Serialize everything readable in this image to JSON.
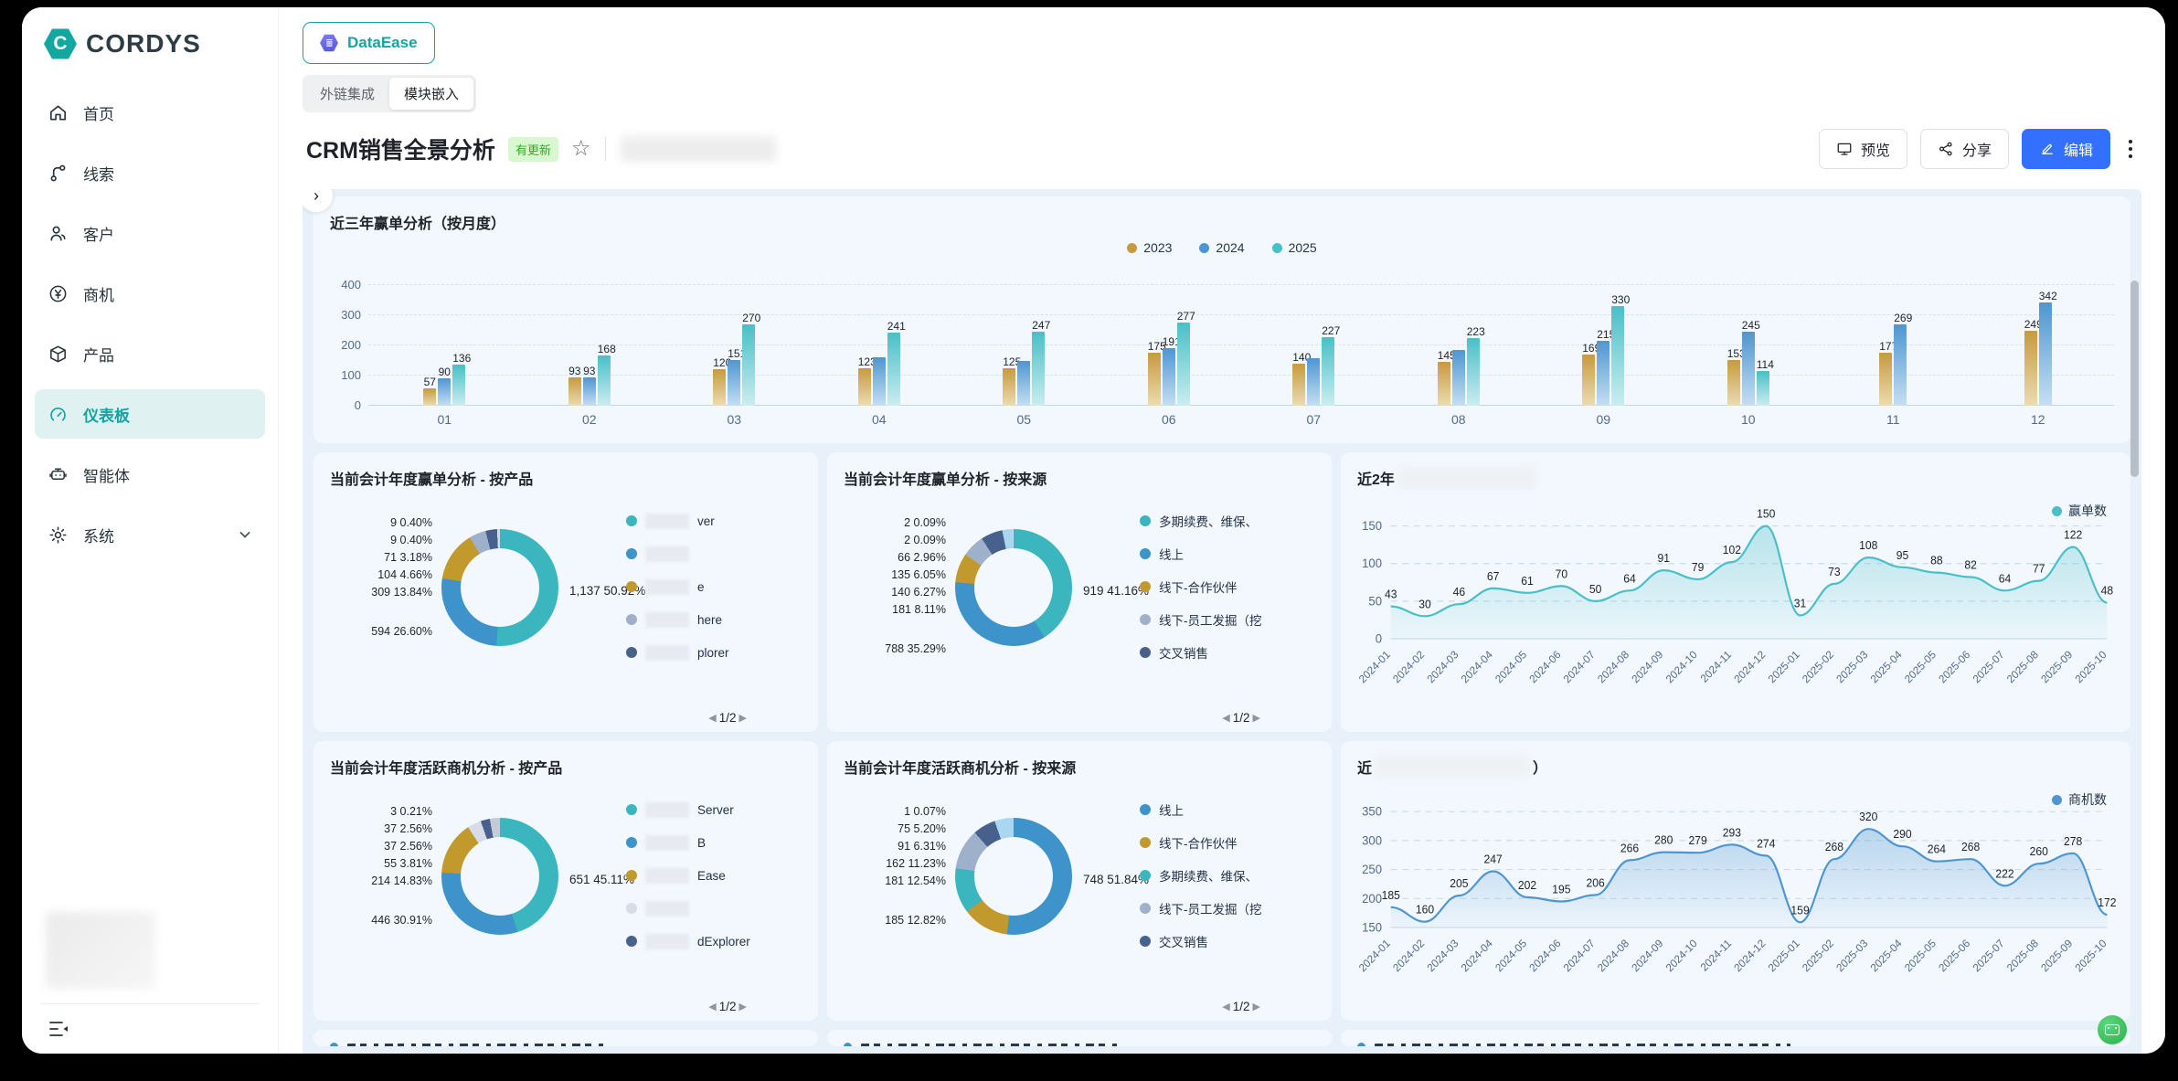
{
  "sidebar": {
    "logo": {
      "text": "CORDYS"
    },
    "items": [
      {
        "label": "首页",
        "icon": "home-icon",
        "active": false
      },
      {
        "label": "线索",
        "icon": "leads-icon",
        "active": false
      },
      {
        "label": "客户",
        "icon": "customers-icon",
        "active": false
      },
      {
        "label": "商机",
        "icon": "opportunity-icon",
        "active": false
      },
      {
        "label": "产品",
        "icon": "product-icon",
        "active": false
      },
      {
        "label": "仪表板",
        "icon": "dashboard-icon",
        "active": true
      },
      {
        "label": "智能体",
        "icon": "agent-icon",
        "active": false
      },
      {
        "label": "系统",
        "icon": "system-icon",
        "active": false,
        "chevron": true
      }
    ]
  },
  "header": {
    "app_button_label": "DataEase",
    "tabs": [
      {
        "label": "外链集成",
        "active": false
      },
      {
        "label": "模块嵌入",
        "active": true
      }
    ],
    "title": "CRM销售全景分析",
    "badge": "有更新",
    "actions": {
      "preview": "预览",
      "share": "分享",
      "edit": "编辑"
    }
  },
  "chart_data": [
    {
      "type": "bar",
      "title": "近三年赢单分析（按月度）",
      "categories": [
        "01",
        "02",
        "03",
        "04",
        "05",
        "06",
        "07",
        "08",
        "09",
        "10",
        "11",
        "12"
      ],
      "ylim": [
        0,
        400
      ],
      "yticks": [
        0,
        100,
        200,
        300,
        400
      ],
      "legend_position": "top-center",
      "series": [
        {
          "name": "2023",
          "color": "#C79A3E",
          "color_to": "#EBDCB2",
          "values": [
            57,
            93,
            120,
            123,
            125,
            175,
            140,
            145,
            169,
            153,
            177,
            249
          ],
          "labels": [
            "57",
            "93",
            "120",
            "123",
            "125",
            "175",
            "140",
            "145",
            "169",
            "153",
            "177",
            "249"
          ]
        },
        {
          "name": "2024",
          "color": "#4E96D1",
          "color_to": "#C6DFF2",
          "values": [
            90,
            93,
            151,
            160,
            148,
            191,
            158,
            185,
            215,
            245,
            269,
            342
          ],
          "labels": [
            "90",
            "93",
            "151",
            "",
            "",
            "191",
            "",
            "",
            "215",
            "245",
            "269",
            "342"
          ]
        },
        {
          "name": "2025",
          "color": "#49BFC7",
          "color_to": "#CBEDF0",
          "values": [
            136,
            168,
            270,
            241,
            247,
            277,
            227,
            223,
            330,
            114,
            null,
            null
          ],
          "labels": [
            "136",
            "168",
            "270",
            "241",
            "247",
            "277",
            "227",
            "223",
            "330",
            "114",
            "",
            ""
          ]
        }
      ]
    },
    {
      "type": "pie",
      "title": "当前会计年度赢单分析 - 按产品",
      "slices": [
        {
          "value": 1137,
          "pct": 50.92,
          "color": "#3BB6BE"
        },
        {
          "value": 594,
          "pct": 26.6,
          "color": "#3E93CB"
        },
        {
          "value": 309,
          "pct": 13.84,
          "color": "#C2992D"
        },
        {
          "value": 104,
          "pct": 4.66,
          "color": "#9FB0CA"
        },
        {
          "value": 71,
          "pct": 3.18,
          "color": "#47618C"
        },
        {
          "value": 9,
          "pct": 0.4,
          "color": "#D7DCE8"
        },
        {
          "value": 9,
          "pct": 0.4,
          "color": "#BFE0F0"
        }
      ],
      "left_labels": [
        "9 0.40%",
        "9 0.40%",
        "71 3.18%",
        "104 4.66%",
        "309 13.84%",
        "594 26.60%"
      ],
      "main_label": "1,137 50.92%",
      "legend": [
        {
          "color": "#3BB6BE",
          "masked": true,
          "text": "ver"
        },
        {
          "color": "#3E93CB",
          "masked": true,
          "text": ""
        },
        {
          "color": "#C2992D",
          "masked": true,
          "text": "e"
        },
        {
          "color": "#9FB0CA",
          "masked": true,
          "text": "here"
        },
        {
          "color": "#47618C",
          "masked": true,
          "text": "plorer"
        }
      ],
      "pagination": "1/2"
    },
    {
      "type": "pie",
      "title": "当前会计年度赢单分析 - 按来源",
      "slices": [
        {
          "value": 919,
          "pct": 41.16,
          "color": "#3BB6BE"
        },
        {
          "value": 788,
          "pct": 35.29,
          "color": "#3E93CB"
        },
        {
          "value": 181,
          "pct": 8.11,
          "color": "#C2992D"
        },
        {
          "value": 140,
          "pct": 6.27,
          "color": "#9FB0CA"
        },
        {
          "value": 135,
          "pct": 6.05,
          "color": "#47618C"
        },
        {
          "value": 66,
          "pct": 2.96,
          "color": "#A9D7F2"
        },
        {
          "value": 2,
          "pct": 0.09,
          "color": "#D7DCE8"
        },
        {
          "value": 2,
          "pct": 0.09,
          "color": "#E4E9F0"
        }
      ],
      "left_labels": [
        "2 0.09%",
        "2 0.09%",
        "66 2.96%",
        "135 6.05%",
        "140 6.27%",
        "181 8.11%",
        "788 35.29%"
      ],
      "main_label": "919 41.16%",
      "legend": [
        {
          "color": "#3BB6BE",
          "masked": false,
          "text": "多期续费、维保、"
        },
        {
          "color": "#3E93CB",
          "masked": false,
          "text": "线上"
        },
        {
          "color": "#C2992D",
          "masked": false,
          "text": "线下-合作伙伴"
        },
        {
          "color": "#9FB0CA",
          "masked": false,
          "text": "线下-员工发掘（挖"
        },
        {
          "color": "#47618C",
          "masked": false,
          "text": "交叉销售"
        }
      ],
      "pagination": "1/2"
    },
    {
      "type": "area",
      "title_prefix": "近2年",
      "title_masked": true,
      "title_mask_width": 150,
      "title_suffix": "",
      "legend": [
        {
          "name": "赢单数",
          "color": "#49BFC7"
        }
      ],
      "x": [
        "2024-01",
        "2024-02",
        "2024-03",
        "2024-04",
        "2024-05",
        "2024-06",
        "2024-07",
        "2024-08",
        "2024-09",
        "2024-10",
        "2024-11",
        "2024-12",
        "2025-01",
        "2025-02",
        "2025-03",
        "2025-04",
        "2025-05",
        "2025-06",
        "2025-07",
        "2025-08",
        "2025-09",
        "2025-10"
      ],
      "values": [
        43,
        30,
        46,
        67,
        61,
        70,
        50,
        64,
        91,
        79,
        102,
        150,
        31,
        73,
        108,
        95,
        88,
        82,
        64,
        77,
        122,
        48
      ],
      "ylim": [
        0,
        158
      ],
      "yticks": [
        0,
        50,
        100,
        150
      ]
    },
    {
      "type": "pie",
      "title": "当前会计年度活跃商机分析 - 按产品",
      "slices": [
        {
          "value": 651,
          "pct": 45.11,
          "color": "#3BB6BE"
        },
        {
          "value": 446,
          "pct": 30.91,
          "color": "#3E93CB"
        },
        {
          "value": 214,
          "pct": 14.83,
          "color": "#C2992D"
        },
        {
          "value": 55,
          "pct": 3.81,
          "color": "#D7DCE8"
        },
        {
          "value": 37,
          "pct": 2.56,
          "color": "#47618C"
        },
        {
          "value": 37,
          "pct": 2.56,
          "color": "#C4CAD6"
        },
        {
          "value": 3,
          "pct": 0.21,
          "color": "#A9D7F2"
        }
      ],
      "left_labels": [
        "3 0.21%",
        "37 2.56%",
        "37 2.56%",
        "55 3.81%",
        "214 14.83%",
        "446 30.91%"
      ],
      "main_label": "651 45.11%",
      "legend": [
        {
          "color": "#3BB6BE",
          "masked": true,
          "text": "Server"
        },
        {
          "color": "#3E93CB",
          "masked": true,
          "text": "B"
        },
        {
          "color": "#C2992D",
          "masked": true,
          "text": "Ease"
        },
        {
          "color": "#D7DCE8",
          "masked": true,
          "text": ""
        },
        {
          "color": "#47618C",
          "masked": true,
          "text": "dExplorer"
        }
      ],
      "pagination": "1/2"
    },
    {
      "type": "pie",
      "title": "当前会计年度活跃商机分析 - 按来源",
      "slices": [
        {
          "value": 748,
          "pct": 51.84,
          "color": "#3E93CB"
        },
        {
          "value": 185,
          "pct": 12.82,
          "color": "#C2992D"
        },
        {
          "value": 181,
          "pct": 12.54,
          "color": "#3BB6BE"
        },
        {
          "value": 162,
          "pct": 11.23,
          "color": "#9FB0CA"
        },
        {
          "value": 91,
          "pct": 6.31,
          "color": "#47618C"
        },
        {
          "value": 75,
          "pct": 5.2,
          "color": "#A9D7F2"
        },
        {
          "value": 1,
          "pct": 0.07,
          "color": "#D7DCE8"
        }
      ],
      "left_labels": [
        "1 0.07%",
        "75 5.20%",
        "91 6.31%",
        "162 11.23%",
        "181 12.54%",
        "185 12.82%"
      ],
      "main_label": "748 51.84%",
      "legend": [
        {
          "color": "#3E93CB",
          "masked": false,
          "text": "线上"
        },
        {
          "color": "#C2992D",
          "masked": false,
          "text": "线下-合作伙伴"
        },
        {
          "color": "#3BB6BE",
          "masked": false,
          "text": "多期续费、维保、"
        },
        {
          "color": "#9FB0CA",
          "masked": false,
          "text": "线下-员工发掘（挖"
        },
        {
          "color": "#47618C",
          "masked": false,
          "text": "交叉销售"
        }
      ],
      "pagination": "1/2"
    },
    {
      "type": "area",
      "title_prefix": "近",
      "title_masked": true,
      "title_mask_width": 168,
      "title_suffix": "）",
      "legend": [
        {
          "name": "商机数",
          "color": "#4E96D1"
        }
      ],
      "x": [
        "2024-01",
        "2024-02",
        "2024-03",
        "2024-04",
        "2024-05",
        "2024-06",
        "2024-07",
        "2024-08",
        "2024-09",
        "2024-10",
        "2024-11",
        "2024-12",
        "2025-01",
        "2025-02",
        "2025-03",
        "2025-04",
        "2025-05",
        "2025-06",
        "2025-07",
        "2025-08",
        "2025-09",
        "2025-10"
      ],
      "values": [
        185,
        160,
        205,
        247,
        202,
        195,
        206,
        266,
        280,
        279,
        293,
        274,
        159,
        268,
        320,
        290,
        264,
        268,
        222,
        260,
        278,
        172
      ],
      "ylim": [
        150,
        355
      ],
      "yticks": [
        150,
        200,
        250,
        300,
        350
      ]
    }
  ]
}
